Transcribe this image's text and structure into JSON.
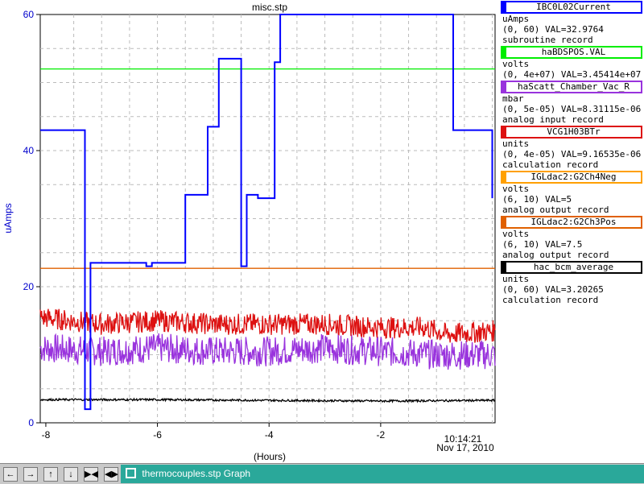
{
  "chart_data": {
    "type": "line",
    "title": "misc.stp",
    "ylabel": "uAmps",
    "xlabel": "(Hours)",
    "ylim": [
      0,
      60
    ],
    "xlim": [
      -8.1,
      0.05
    ],
    "y_ticks": [
      "0",
      "20",
      "40",
      "60"
    ],
    "x_ticks": [
      "-8",
      "-6",
      "-4",
      "-2"
    ],
    "time_label": "10:14:21",
    "date_label": "Nov 17, 2010",
    "grid": true,
    "legend_position": "right",
    "series": [
      {
        "name": "IBC0L02Current",
        "color": "#0000ff",
        "x": [
          -8.1,
          -7.35,
          -7.3,
          -7.2,
          -6.6,
          -6.2,
          -6.1,
          -5.5,
          -5.4,
          -5.1,
          -4.9,
          -4.5,
          -4.4,
          -4.2,
          -3.9,
          -3.8,
          -2.8,
          -2.6,
          -1.5,
          -1.0,
          -0.7,
          0.0
        ],
        "values": [
          43,
          43,
          2,
          23.5,
          23.5,
          23,
          23.5,
          33.5,
          33.5,
          43.5,
          53.5,
          23,
          33.5,
          33,
          53,
          60,
          60,
          60,
          60,
          60,
          43,
          33
        ]
      },
      {
        "name": "haBDSPOS.VAL",
        "color": "#00ee00",
        "x": [
          -8.1,
          0.05
        ],
        "values": [
          52,
          52
        ]
      },
      {
        "name": "haScatt_Chamber_Vac_R",
        "color": "#9933dd",
        "x": [
          -8.1,
          -7.0,
          -6.0,
          -5.0,
          -4.0,
          -3.0,
          -2.0,
          -1.0,
          0.05
        ],
        "values": [
          11,
          10.5,
          11,
          10.5,
          10.5,
          11,
          10.5,
          10,
          10
        ]
      },
      {
        "name": "VCG1H03BTr",
        "color": "#dd1111",
        "x": [
          -8.1,
          -7.0,
          -6.0,
          -5.0,
          -4.0,
          -3.0,
          -2.0,
          -1.2,
          -0.8,
          0.05
        ],
        "values": [
          15.5,
          14.5,
          15,
          14.5,
          14.5,
          14.5,
          14,
          14,
          13,
          13.5
        ]
      },
      {
        "name": "hac_bcm_average",
        "color": "#000000",
        "x": [
          -8.1,
          -6.0,
          -4.0,
          -2.0,
          0.05
        ],
        "values": [
          3.4,
          3.4,
          3.3,
          3.2,
          3.3
        ]
      },
      {
        "name": "IGLdac2:G2Ch3Pos",
        "color": "#e06000",
        "x": [
          -8.1,
          0.05
        ],
        "values": [
          22.7,
          22.7
        ]
      }
    ]
  },
  "legend": [
    {
      "name": "IBC0L02Current",
      "color": "#0000ff",
      "unit": "uAmps",
      "range": "(0, 60) VAL=32.9764",
      "record": "subroutine record"
    },
    {
      "name": "haBDSPOS.VAL",
      "color": "#00ee00",
      "unit": "volts",
      "range": "(0, 4e+07) VAL=3.45414e+07",
      "record": ""
    },
    {
      "name": "haScatt_Chamber_Vac_R",
      "color": "#9933dd",
      "unit": "mbar",
      "range": "(0, 5e-05) VAL=8.31115e-06",
      "record": "analog input record"
    },
    {
      "name": "VCG1H03BTr",
      "color": "#dd1111",
      "unit": "units",
      "range": "(0, 4e-05) VAL=9.16535e-06",
      "record": "calculation record"
    },
    {
      "name": "IGLdac2:G2Ch4Neg",
      "color": "#ffa000",
      "unit": "volts",
      "range": "(6, 10) VAL=5",
      "record": "analog output record"
    },
    {
      "name": "IGLdac2:G2Ch3Pos",
      "color": "#e06000",
      "unit": "volts",
      "range": "(6, 10) VAL=7.5",
      "record": "analog output record"
    },
    {
      "name": "hac_bcm_average",
      "color": "#000000",
      "unit": "units",
      "range": "(0, 60) VAL=3.20265",
      "record": "calculation record"
    }
  ],
  "taskbar": {
    "buttons": [
      {
        "name": "scroll-left-button",
        "glyph": "←"
      },
      {
        "name": "scroll-right-button",
        "glyph": "→"
      },
      {
        "name": "scroll-up-button",
        "glyph": "↑"
      },
      {
        "name": "scroll-down-button",
        "glyph": "↓"
      },
      {
        "name": "zoom-in-x-button",
        "glyph": "▶◀"
      },
      {
        "name": "zoom-out-x-button",
        "glyph": "◀▶"
      }
    ],
    "window_title": "thermocouples.stp Graph"
  }
}
